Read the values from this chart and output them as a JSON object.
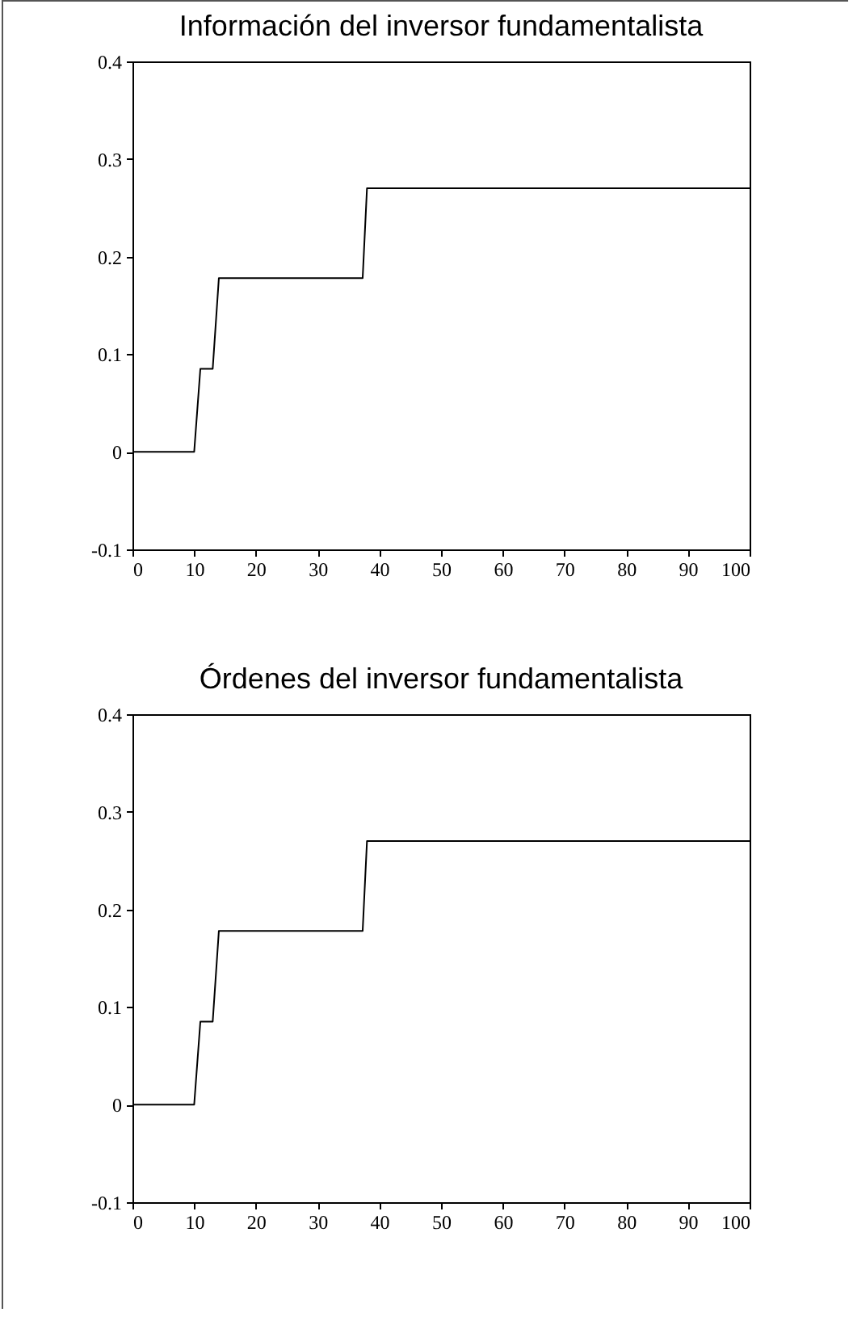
{
  "chart_data": [
    {
      "type": "line",
      "title": "Información del inversor fundamentalista",
      "x": [
        0,
        10,
        11,
        13,
        14,
        37.3,
        38,
        100
      ],
      "values": [
        0,
        0,
        0.085,
        0.085,
        0.178,
        0.178,
        0.27,
        0.27
      ],
      "color": "#000000",
      "xlim": [
        0,
        100
      ],
      "xticks": [
        0,
        10,
        20,
        30,
        40,
        50,
        60,
        70,
        80,
        90,
        100
      ],
      "ylim": [
        -0.1,
        0.4
      ],
      "yticks": [
        -0.1,
        0,
        0.1,
        0.2,
        0.3,
        0.4
      ],
      "grid": false
    },
    {
      "type": "line",
      "title": "Órdenes del inversor fundamentalista",
      "x": [
        0,
        10,
        11,
        13,
        14,
        37.3,
        38,
        100
      ],
      "values": [
        0,
        0,
        0.085,
        0.085,
        0.178,
        0.178,
        0.27,
        0.27
      ],
      "color": "#000000",
      "xlim": [
        0,
        100
      ],
      "xticks": [
        0,
        10,
        20,
        30,
        40,
        50,
        60,
        70,
        80,
        90,
        100
      ],
      "ylim": [
        -0.1,
        0.4
      ],
      "yticks": [
        -0.1,
        0,
        0.1,
        0.2,
        0.3,
        0.4
      ],
      "grid": false
    }
  ]
}
